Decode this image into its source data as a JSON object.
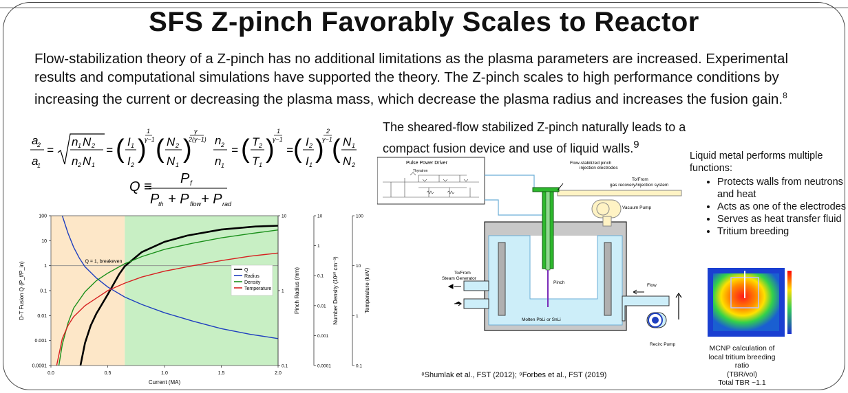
{
  "slide": {
    "title": "SFS Z-pinch Favorably Scales to Reactor",
    "intro": "Flow-stabilization theory of a Z-pinch has no additional limitations as the plasma parameters are increased. Experimental results and computational simulations have supported the theory. The Z-pinch scales to high performance conditions by increasing the current or decreasing the plasma mass, which decrease the plasma radius and increases the fusion gain.",
    "intro_ref": "8",
    "mid_text": "The sheared-flow stabilized Z-pinch naturally leads to a compact fusion device and use of liquid walls.",
    "mid_ref": "9",
    "right_heading": "Liquid metal performs multiple functions:",
    "right_bullets": [
      "Protects walls from neutrons and heat",
      "Acts as one of the electrodes",
      "Serves as heat transfer fluid",
      "Tritium breeding"
    ],
    "mcnp_caption": [
      "MCNP calculation of",
      "local tritium breeding ratio",
      "(TBR/vol)",
      "Total TBR ~1.1"
    ],
    "citation": "⁸Shumlak et al., FST (2012); ⁹Forbes et al., FST (2019)"
  },
  "equations": {
    "q_lhs": "Q ≡",
    "q_num": "P",
    "q_num_sub": "f",
    "q_den": [
      "P",
      "th",
      "+ P",
      "flow",
      "+ P",
      "rad"
    ]
  },
  "diagram": {
    "pulse_power_label": "Pulse Power Driver",
    "thyratron_label": "Thyratron",
    "electrodes_label": [
      "Flow-stabilized pinch",
      "injection electrodes"
    ],
    "gas_label": [
      "To/From",
      "gas recovery/injection system"
    ],
    "vacuum_label": "Vacuum Pump",
    "steam_label": [
      "To/From",
      "Steam Generator"
    ],
    "pinch_label": "Pinch",
    "flow_label": "Flow",
    "molten_label": "Molten PbLi or SnLi",
    "recirc_label": "Recirc Pump"
  },
  "chart_data": {
    "type": "line",
    "xlabel": "Current (MA)",
    "ylabel": "D-T Fusion Q (P_f/P_in)",
    "xlim": [
      0.0,
      2.0
    ],
    "x_ticks": [
      "0.0",
      "0.5",
      "1.0",
      "1.5",
      "2.0"
    ],
    "y_ticks": [
      "100",
      "10",
      "1",
      "0.1",
      "0.01",
      "0.001",
      "0.0001"
    ],
    "ylim": [
      0.0001,
      100
    ],
    "y_scale": "log",
    "right_axes": [
      {
        "label": "Pinch Radius (mm)",
        "ticks": [
          "10",
          "1",
          "0.1"
        ]
      },
      {
        "label": "Number Density (10²⁰ cm⁻³)",
        "ticks": [
          "10",
          "1",
          "0.1",
          "0.01",
          "0.001",
          "0.0001"
        ]
      },
      {
        "label": "Temperature (keV)",
        "ticks": [
          "100",
          "10",
          "1",
          "0.1"
        ]
      }
    ],
    "annotation": "Q = 1, breakeven",
    "breakeven_x": 0.65,
    "legend_position": "center-right",
    "series": [
      {
        "name": "Q",
        "color": "#000000",
        "x": [
          0.26,
          0.3,
          0.35,
          0.4,
          0.5,
          0.6,
          0.65,
          0.8,
          1.0,
          1.2,
          1.5,
          1.8,
          2.0
        ],
        "y": [
          0.0001,
          0.0008,
          0.004,
          0.012,
          0.07,
          0.45,
          0.95,
          3.5,
          9,
          16,
          28,
          37,
          40
        ]
      },
      {
        "name": "Radius",
        "color": "#1f3fbf",
        "x": [
          0.1,
          0.15,
          0.2,
          0.25,
          0.3,
          0.4,
          0.5,
          0.65,
          0.8,
          1.0,
          1.25,
          1.5,
          1.75,
          2.0
        ],
        "y": [
          100,
          20,
          5.5,
          2.0,
          0.9,
          0.32,
          0.14,
          0.055,
          0.028,
          0.013,
          0.006,
          0.003,
          0.0018,
          0.0012
        ]
      },
      {
        "name": "Density",
        "color": "#1a8f1a",
        "x": [
          0.07,
          0.1,
          0.15,
          0.2,
          0.3,
          0.4,
          0.5,
          0.65,
          0.8,
          1.0,
          1.25,
          1.5,
          1.75,
          2.0
        ],
        "y": [
          0.0001,
          0.0007,
          0.005,
          0.02,
          0.09,
          0.25,
          0.5,
          1.2,
          2.3,
          4.5,
          8,
          13,
          19,
          27
        ]
      },
      {
        "name": "Temperature",
        "color": "#d62020",
        "x": [
          0.05,
          0.1,
          0.15,
          0.2,
          0.3,
          0.4,
          0.5,
          0.65,
          0.8,
          1.0,
          1.25,
          1.5,
          1.75,
          2.0
        ],
        "y": [
          0.0001,
          0.0012,
          0.004,
          0.009,
          0.025,
          0.05,
          0.1,
          0.2,
          0.35,
          0.6,
          1.0,
          1.6,
          2.4,
          3.2
        ]
      }
    ]
  },
  "colors": {
    "shade_left": "#fde7c8",
    "shade_right": "#c8efc4",
    "liquid": "#cdeef9",
    "wall": "#b4b4b4",
    "electrode": "#2db82d"
  }
}
